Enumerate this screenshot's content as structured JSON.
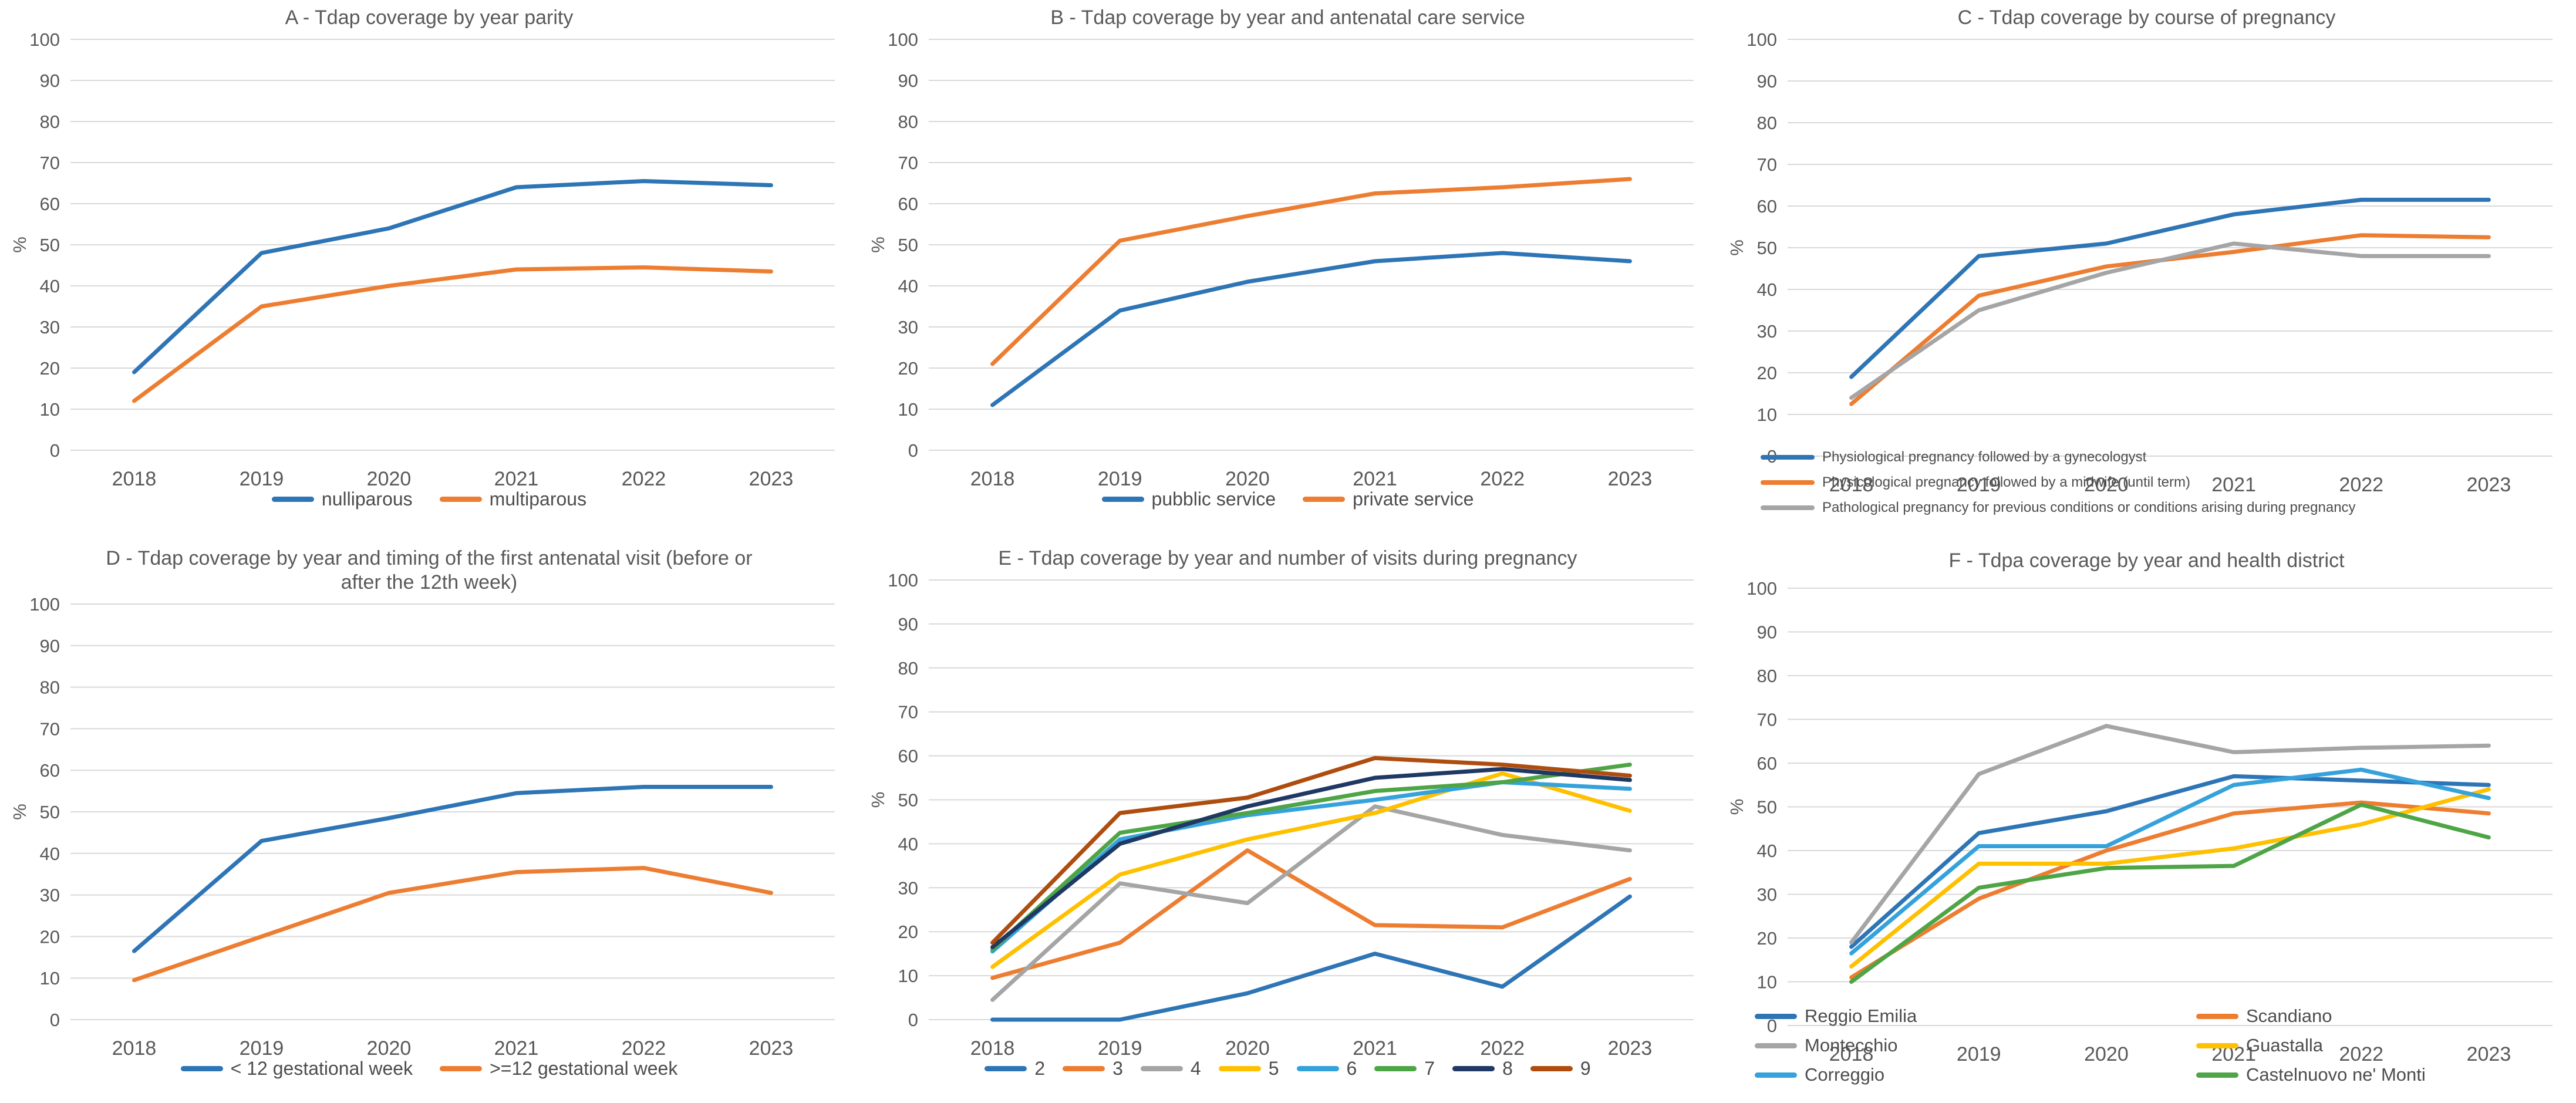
{
  "colors": {
    "blue": "#2E75B6",
    "orange": "#ED7D31",
    "gray": "#A5A5A5",
    "gold": "#FFC000",
    "sky": "#35A2DC",
    "green": "#4EA546",
    "navy": "#1F3864",
    "rust": "#AE4D0E",
    "axis_text": "#595959",
    "gridline": "#D9D9D9"
  },
  "chart_data": [
    {
      "id": "A",
      "type": "line",
      "title": "A - Tdap coverage by year parity",
      "ylabel": "%",
      "ylim": [
        0,
        100
      ],
      "ytick_step": 10,
      "grid": true,
      "legend_position": "bottom",
      "categories": [
        "2018",
        "2019",
        "2020",
        "2021",
        "2022",
        "2023"
      ],
      "series": [
        {
          "name": "nulliparous",
          "color": "blue",
          "values": [
            19,
            48,
            54,
            64,
            65.5,
            64.5
          ]
        },
        {
          "name": "multiparous",
          "color": "orange",
          "values": [
            12,
            35,
            40,
            44,
            44.5,
            43.5
          ]
        }
      ]
    },
    {
      "id": "B",
      "type": "line",
      "title": "B - Tdap coverage by year and antenatal care service",
      "ylabel": "%",
      "ylim": [
        0,
        100
      ],
      "ytick_step": 10,
      "grid": true,
      "legend_position": "bottom",
      "categories": [
        "2018",
        "2019",
        "2020",
        "2021",
        "2022",
        "2023"
      ],
      "series": [
        {
          "name": "pubblic service",
          "color": "blue",
          "values": [
            11,
            34,
            41,
            46,
            48,
            46
          ]
        },
        {
          "name": "private service",
          "color": "orange",
          "values": [
            21,
            51,
            57,
            62.5,
            64,
            66
          ]
        }
      ]
    },
    {
      "id": "C",
      "type": "line",
      "title": "C - Tdap coverage by course of pregnancy",
      "ylabel": "%",
      "ylim": [
        0,
        100
      ],
      "ytick_step": 10,
      "grid": true,
      "legend_position": "bottom-left-list",
      "categories": [
        "2018",
        "2019",
        "2020",
        "2021",
        "2022",
        "2023"
      ],
      "series": [
        {
          "name": "Physiological pregnancy followed by a gynecologyst",
          "color": "blue",
          "values": [
            19,
            48,
            51,
            58,
            61.5,
            61.5
          ]
        },
        {
          "name": "Physicological pregnancy followed by a midwife (until term)",
          "color": "orange",
          "values": [
            12.5,
            38.5,
            45.5,
            49,
            53,
            52.5
          ]
        },
        {
          "name": "Pathological pregnancy for previous conditions or conditions arising during pregnancy",
          "color": "gray",
          "values": [
            14,
            35,
            44,
            51,
            48,
            48
          ]
        }
      ]
    },
    {
      "id": "D",
      "type": "line",
      "title": "D - Tdap coverage by year and timing of the first antenatal visit  (before or after the 12th week)",
      "ylabel": "%",
      "ylim": [
        0,
        100
      ],
      "ytick_step": 10,
      "grid": true,
      "legend_position": "bottom",
      "categories": [
        "2018",
        "2019",
        "2020",
        "2021",
        "2022",
        "2023"
      ],
      "series": [
        {
          "name": "< 12 gestational week",
          "color": "blue",
          "values": [
            16.5,
            43,
            48.5,
            54.5,
            56,
            56
          ]
        },
        {
          "name": ">=12 gestational week",
          "color": "orange",
          "values": [
            9.5,
            20,
            30.5,
            35.5,
            36.5,
            30.5
          ]
        }
      ]
    },
    {
      "id": "E",
      "type": "line",
      "title": "E - Tdap coverage by year and number of visits during pregnancy",
      "ylabel": "%",
      "ylim": [
        0,
        100
      ],
      "ytick_step": 10,
      "grid": true,
      "legend_position": "bottom",
      "categories": [
        "2018",
        "2019",
        "2020",
        "2021",
        "2022",
        "2023"
      ],
      "series": [
        {
          "name": "2",
          "color": "blue",
          "values": [
            0,
            0,
            6,
            15,
            7.5,
            28
          ]
        },
        {
          "name": "3",
          "color": "orange",
          "values": [
            9.5,
            17.5,
            38.5,
            21.5,
            21,
            32
          ]
        },
        {
          "name": "4",
          "color": "gray",
          "values": [
            4.5,
            31,
            26.5,
            48.5,
            42,
            38.5
          ]
        },
        {
          "name": "5",
          "color": "gold",
          "values": [
            12,
            33,
            41,
            47,
            56,
            47.5
          ]
        },
        {
          "name": "6",
          "color": "sky",
          "values": [
            15.5,
            41,
            46.5,
            50,
            54,
            52.5
          ]
        },
        {
          "name": "7",
          "color": "green",
          "values": [
            16,
            42.5,
            47,
            52,
            54,
            58
          ]
        },
        {
          "name": "8",
          "color": "navy",
          "values": [
            16.5,
            40,
            48.5,
            55,
            57,
            54.5
          ]
        },
        {
          "name": "9",
          "color": "rust",
          "values": [
            17.5,
            47,
            50.5,
            59.5,
            58,
            55.5
          ]
        }
      ]
    },
    {
      "id": "F",
      "type": "line",
      "title": "F - Tdpa coverage by year and health district",
      "ylabel": "%",
      "ylim": [
        0,
        100
      ],
      "ytick_step": 10,
      "grid": true,
      "legend_position": "bottom-2col",
      "categories": [
        "2018",
        "2019",
        "2020",
        "2021",
        "2022",
        "2023"
      ],
      "series": [
        {
          "name": "Reggio Emilia",
          "color": "blue",
          "values": [
            18,
            44,
            49,
            57,
            56,
            55
          ]
        },
        {
          "name": "Scandiano",
          "color": "orange",
          "values": [
            11,
            29,
            40,
            48.5,
            51,
            48.5
          ]
        },
        {
          "name": "Montecchio",
          "color": "gray",
          "values": [
            19,
            57.5,
            68.5,
            62.5,
            63.5,
            64
          ]
        },
        {
          "name": "Guastalla",
          "color": "gold",
          "values": [
            13.5,
            37,
            37,
            40.5,
            46,
            54
          ]
        },
        {
          "name": "Correggio",
          "color": "sky",
          "values": [
            16.5,
            41,
            41,
            55,
            58.5,
            52
          ]
        },
        {
          "name": "Castelnuovo ne' Monti",
          "color": "green",
          "values": [
            10,
            31.5,
            36,
            36.5,
            50.5,
            43
          ]
        }
      ]
    }
  ]
}
